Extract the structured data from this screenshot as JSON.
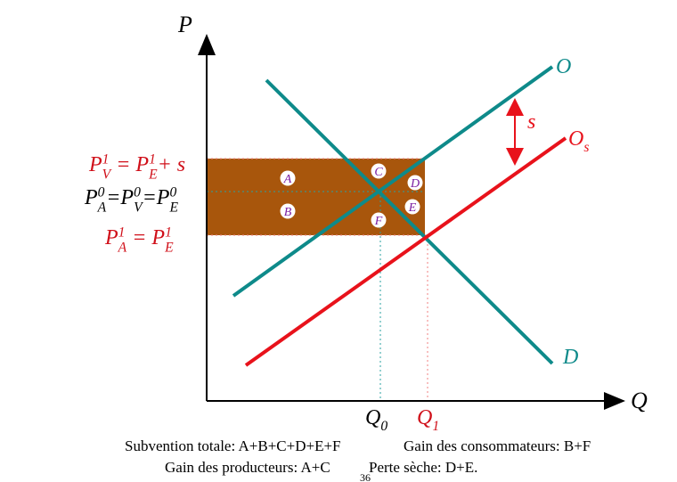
{
  "axes": {
    "y_label": "P",
    "x_label": "Q"
  },
  "curves": {
    "supply": {
      "base": "O"
    },
    "subsidized_supply": {
      "base": "O",
      "sub": "s"
    },
    "demand": {
      "base": "D"
    }
  },
  "shift_label": "s",
  "price_labels": [
    {
      "parts": [
        {
          "base": "P",
          "sup": "1",
          "sub": "V"
        },
        {
          "base": " = "
        },
        {
          "base": "P",
          "sup": "1",
          "sub": "E"
        },
        {
          "base": "+ s"
        }
      ]
    },
    {
      "parts": [
        {
          "base": "P",
          "sup": "0",
          "sub": "A"
        },
        {
          "base": "="
        },
        {
          "base": "P",
          "sup": "0",
          "sub": "V"
        },
        {
          "base": "="
        },
        {
          "base": "P",
          "sup": "0",
          "sub": "E"
        }
      ]
    },
    {
      "parts": [
        {
          "base": "P",
          "sup": "1",
          "sub": "A"
        },
        {
          "base": " = "
        },
        {
          "base": "P",
          "sup": "1",
          "sub": "E"
        }
      ]
    }
  ],
  "quantity_labels": [
    {
      "base": "Q",
      "sub": "0"
    },
    {
      "base": "Q",
      "sub": "1"
    }
  ],
  "regions": [
    "A",
    "B",
    "C",
    "D",
    "E",
    "F"
  ],
  "notes": {
    "total_subsidy": "Subvention totale: A+B+C+D+E+F",
    "consumer_gain": "Gain des consommateurs: B+F",
    "producer_gain": "Gain des producteurs: A+C",
    "deadweight_loss": "Perte sèche: D+E.",
    "page_number": "36"
  }
}
